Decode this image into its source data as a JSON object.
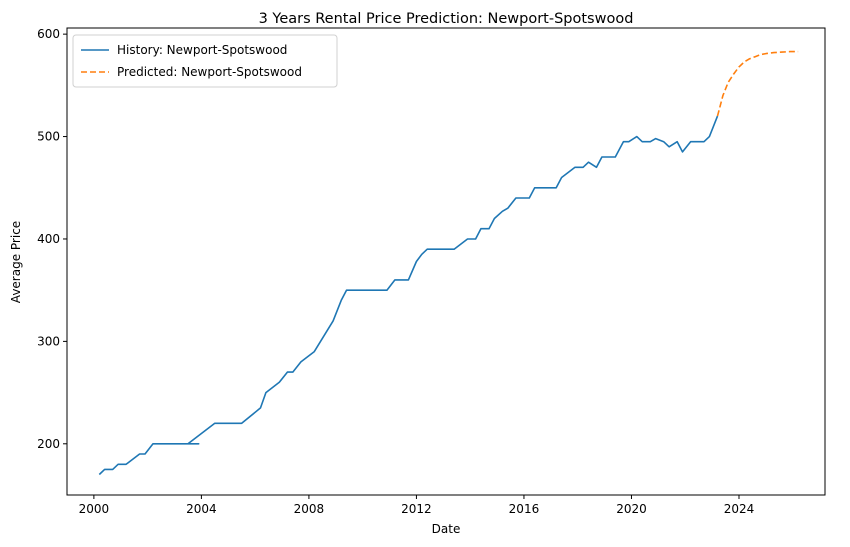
{
  "chart_data": {
    "type": "line",
    "title": "3 Years Rental Price Prediction: Newport-Spotswood",
    "xlabel": "Date",
    "ylabel": "Average Price",
    "xlim": [
      1999.0,
      2027.2
    ],
    "ylim": [
      150,
      606
    ],
    "x_ticks": [
      2000,
      2004,
      2008,
      2012,
      2016,
      2020,
      2024
    ],
    "y_ticks": [
      200,
      300,
      400,
      500,
      600
    ],
    "grid": false,
    "legend_position": "top-left",
    "series": [
      {
        "name": "History: Newport-Spotswood",
        "color": "#1f77b4",
        "style": "solid",
        "points": [
          [
            2000.2,
            170
          ],
          [
            2000.4,
            175
          ],
          [
            2000.7,
            175
          ],
          [
            2000.9,
            180
          ],
          [
            2001.2,
            180
          ],
          [
            2001.7,
            190
          ],
          [
            2001.9,
            190
          ],
          [
            2002.2,
            200
          ],
          [
            2002.7,
            200
          ],
          [
            2003.2,
            200
          ],
          [
            2003.4,
            200
          ],
          [
            2003.5,
            200
          ],
          [
            2003.7,
            200
          ],
          [
            2003.9,
            200
          ],
          [
            2003.5,
            200
          ],
          [
            2004.5,
            220
          ],
          [
            2005.5,
            220
          ],
          [
            2006.2,
            235
          ],
          [
            2006.4,
            250
          ],
          [
            2006.9,
            260
          ],
          [
            2007.2,
            270
          ],
          [
            2007.4,
            270
          ],
          [
            2007.7,
            280
          ],
          [
            2008.2,
            290
          ],
          [
            2008.9,
            320
          ],
          [
            2009.2,
            340
          ],
          [
            2009.4,
            350
          ],
          [
            2010.2,
            350
          ],
          [
            2010.9,
            350
          ],
          [
            2011.2,
            360
          ],
          [
            2011.7,
            360
          ],
          [
            2012.0,
            378
          ],
          [
            2012.2,
            385
          ],
          [
            2012.4,
            390
          ],
          [
            2013.4,
            390
          ],
          [
            2013.9,
            400
          ],
          [
            2014.2,
            400
          ],
          [
            2014.4,
            410
          ],
          [
            2014.7,
            410
          ],
          [
            2014.9,
            420
          ],
          [
            2015.2,
            427
          ],
          [
            2015.4,
            430
          ],
          [
            2015.7,
            440
          ],
          [
            2016.2,
            440
          ],
          [
            2016.4,
            450
          ],
          [
            2016.9,
            450
          ],
          [
            2017.2,
            450
          ],
          [
            2017.4,
            460
          ],
          [
            2017.9,
            470
          ],
          [
            2018.2,
            470
          ],
          [
            2018.4,
            475
          ],
          [
            2018.7,
            470
          ],
          [
            2018.9,
            480
          ],
          [
            2019.4,
            480
          ],
          [
            2019.7,
            495
          ],
          [
            2019.9,
            495
          ],
          [
            2020.2,
            500
          ],
          [
            2020.4,
            495
          ],
          [
            2020.7,
            495
          ],
          [
            2020.9,
            498
          ],
          [
            2021.2,
            495
          ],
          [
            2021.4,
            490
          ],
          [
            2021.7,
            495
          ],
          [
            2021.9,
            485
          ],
          [
            2022.2,
            495
          ],
          [
            2022.7,
            495
          ],
          [
            2022.9,
            500
          ],
          [
            2023.2,
            520
          ]
        ]
      },
      {
        "name": "Predicted: Newport-Spotswood",
        "color": "#ff7f0e",
        "style": "dashed",
        "points": [
          [
            2023.2,
            520
          ],
          [
            2023.4,
            540
          ],
          [
            2023.6,
            553
          ],
          [
            2023.8,
            561
          ],
          [
            2024.0,
            568
          ],
          [
            2024.2,
            573
          ],
          [
            2024.4,
            576
          ],
          [
            2024.6,
            578
          ],
          [
            2024.8,
            580
          ],
          [
            2025.0,
            581
          ],
          [
            2025.3,
            582
          ],
          [
            2025.6,
            582.5
          ],
          [
            2025.9,
            583
          ],
          [
            2026.2,
            583
          ]
        ]
      }
    ]
  }
}
